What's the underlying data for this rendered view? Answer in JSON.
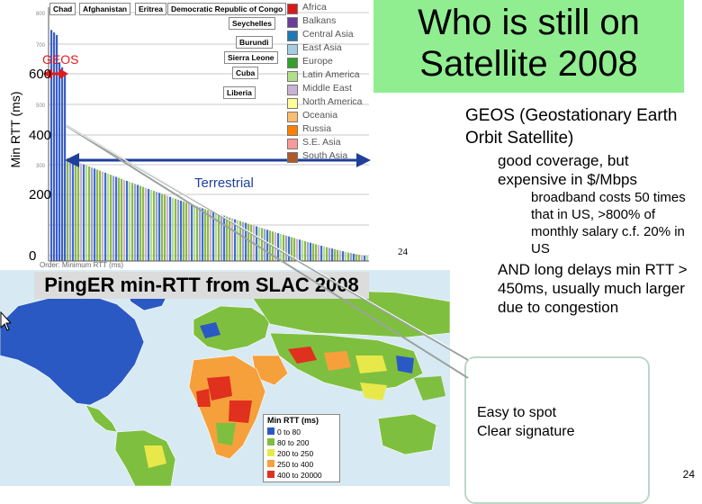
{
  "slide_title": "Who is still on Satellite 2008",
  "chart": {
    "ylabel": "Min RTT (ms)",
    "yticks": [
      "600",
      "400",
      "200",
      "0"
    ],
    "geos_label": "GEOS",
    "terrestrial_label": "Terrestrial",
    "xlabel_small": "Order: Minimum RTT (ms)",
    "small_tick_800": "800",
    "small_tick_700": "700",
    "small_tick_500": "500",
    "small_tick_300": "300",
    "country_tags": [
      "Chad",
      "Afghanistan",
      "Eritrea",
      "Democratic Republic of Congo",
      "Seychelles",
      "Burundi",
      "Sierra Leone",
      "Cuba",
      "Liberia"
    ],
    "legend": [
      {
        "label": "Africa",
        "color": "#d7191c"
      },
      {
        "label": "Balkans",
        "color": "#6a3d9a"
      },
      {
        "label": "Central Asia",
        "color": "#1f78b4"
      },
      {
        "label": "East Asia",
        "color": "#a6cee3"
      },
      {
        "label": "Europe",
        "color": "#33a02c"
      },
      {
        "label": "Latin America",
        "color": "#b2df8a"
      },
      {
        "label": "Middle East",
        "color": "#cab2d6"
      },
      {
        "label": "North America",
        "color": "#ffff99"
      },
      {
        "label": "Oceania",
        "color": "#fdbf6f"
      },
      {
        "label": "Russia",
        "color": "#ff7f00"
      },
      {
        "label": "S.E. Asia",
        "color": "#fb9a99"
      },
      {
        "label": "South Asia",
        "color": "#b15928"
      }
    ]
  },
  "right_text": {
    "geos_def": "GEOS (Geostationary Earth Orbit Satellite)",
    "good_coverage": "good coverage, but expensive in $/Mbps",
    "broadband": "broadband costs 50 times that in US, >800% of monthly salary c.f. 20% in US",
    "long_delays": "AND long delays min RTT > 450ms, usually much larger due to congestion"
  },
  "map": {
    "title": "PingER min-RTT from SLAC 2008",
    "legend_title": "Min RTT (ms)",
    "legend": [
      {
        "label": "0 to 80",
        "color": "#2b59c3"
      },
      {
        "label": "80 to 200",
        "color": "#7fbf3f"
      },
      {
        "label": "200 to 250",
        "color": "#e8e84a"
      },
      {
        "label": "250 to 400",
        "color": "#f6a03c"
      },
      {
        "label": "400 to 20000",
        "color": "#e0301e"
      }
    ]
  },
  "callout": {
    "line1": "Easy to spot",
    "line2": "Clear signature"
  },
  "page_number_small": "24",
  "page_number": "24"
}
